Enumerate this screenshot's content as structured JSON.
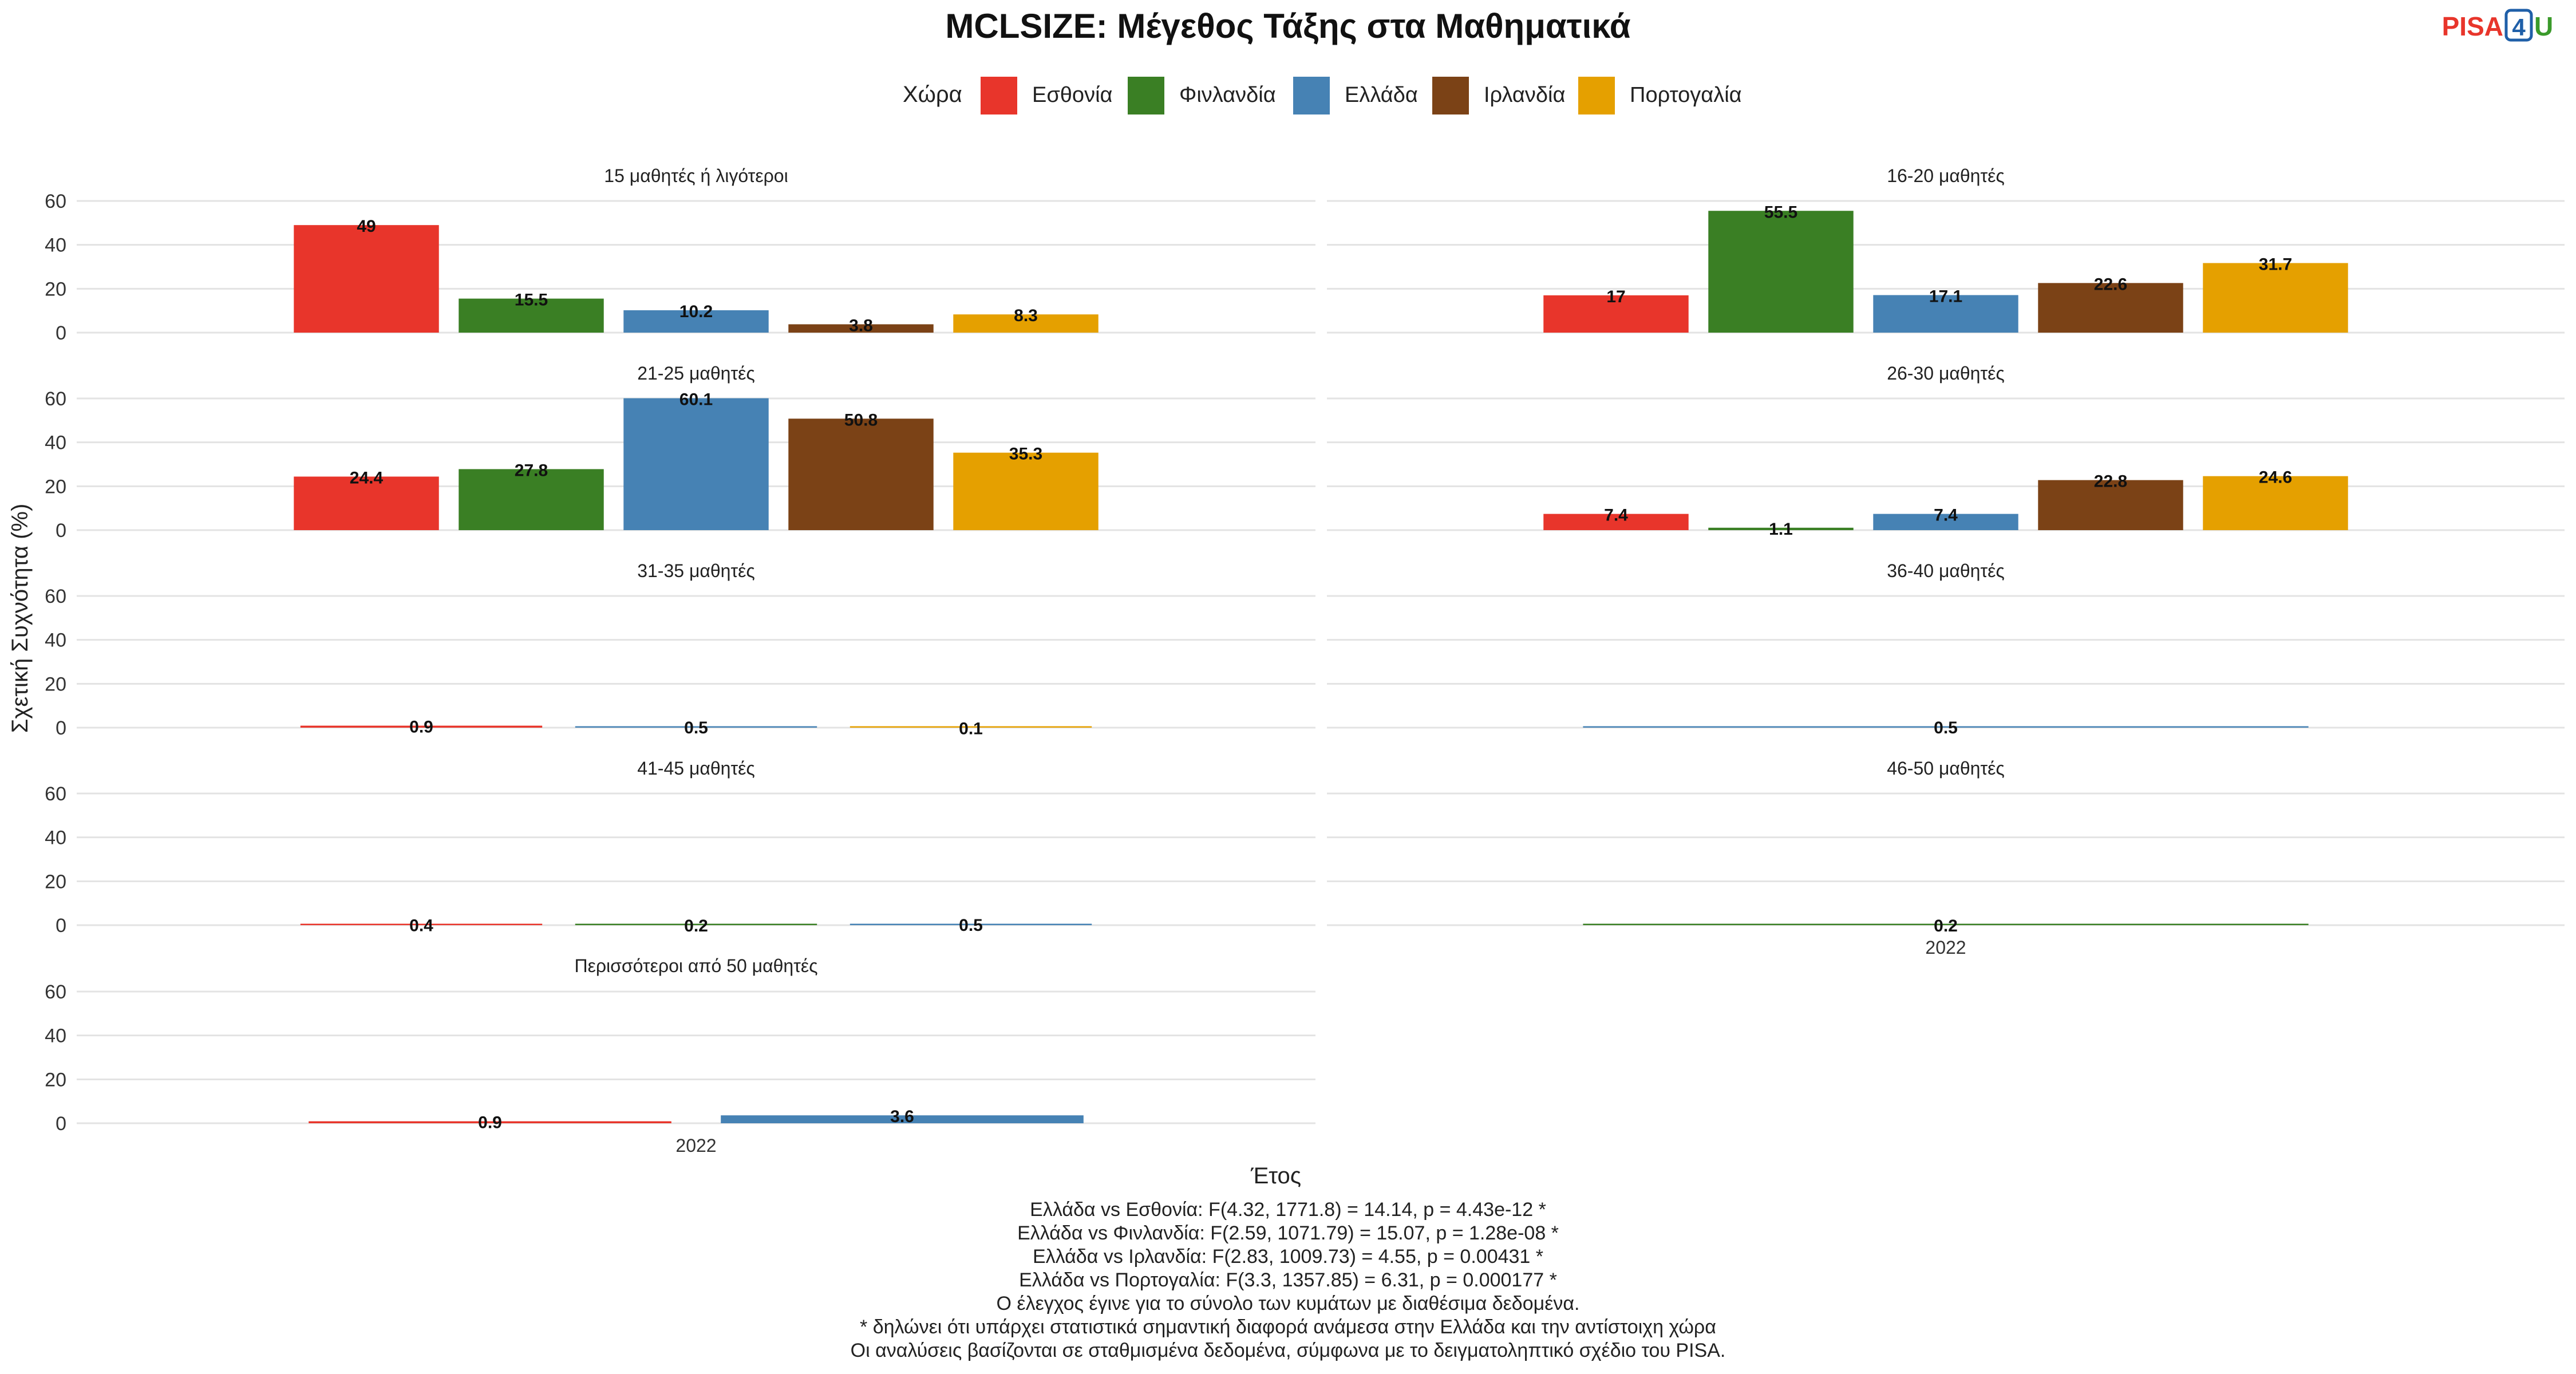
{
  "chart_data": {
    "type": "bar",
    "title": "MCLSIZE: Μέγεθος Τάξης στα Μαθηματικά",
    "xlabel": "Έτος",
    "ylabel": "Σχετική Συχνότητα (%)",
    "ylim": [
      0,
      60
    ],
    "yticks": [
      0,
      20,
      40,
      60
    ],
    "grid": true,
    "x_category": "2022",
    "legend": {
      "title": "Χώρα",
      "placement": "top-center",
      "entries": [
        {
          "name": "Εσθονία",
          "color": "#E8352B"
        },
        {
          "name": "Φινλανδία",
          "color": "#3A7F24"
        },
        {
          "name": "Ελλάδα",
          "color": "#4682B4"
        },
        {
          "name": "Ιρλανδία",
          "color": "#7B4216"
        },
        {
          "name": "Πορτογαλία",
          "color": "#E5A000"
        }
      ]
    },
    "facets": [
      {
        "label": "15 μαθητές ή λιγότεροι",
        "bars": [
          {
            "series": "Εσθονία",
            "value": 49
          },
          {
            "series": "Φινλανδία",
            "value": 15.5
          },
          {
            "series": "Ελλάδα",
            "value": 10.2
          },
          {
            "series": "Ιρλανδία",
            "value": 3.8
          },
          {
            "series": "Πορτογαλία",
            "value": 8.3
          }
        ]
      },
      {
        "label": "16-20 μαθητές",
        "bars": [
          {
            "series": "Εσθονία",
            "value": 17
          },
          {
            "series": "Φινλανδία",
            "value": 55.5
          },
          {
            "series": "Ελλάδα",
            "value": 17.1
          },
          {
            "series": "Ιρλανδία",
            "value": 22.6
          },
          {
            "series": "Πορτογαλία",
            "value": 31.7
          }
        ]
      },
      {
        "label": "21-25 μαθητές",
        "bars": [
          {
            "series": "Εσθονία",
            "value": 24.4
          },
          {
            "series": "Φινλανδία",
            "value": 27.8
          },
          {
            "series": "Ελλάδα",
            "value": 60.1
          },
          {
            "series": "Ιρλανδία",
            "value": 50.8
          },
          {
            "series": "Πορτογαλία",
            "value": 35.3
          }
        ]
      },
      {
        "label": "26-30 μαθητές",
        "bars": [
          {
            "series": "Εσθονία",
            "value": 7.4
          },
          {
            "series": "Φινλανδία",
            "value": 1.1
          },
          {
            "series": "Ελλάδα",
            "value": 7.4
          },
          {
            "series": "Ιρλανδία",
            "value": 22.8
          },
          {
            "series": "Πορτογαλία",
            "value": 24.6
          }
        ]
      },
      {
        "label": "31-35 μαθητές",
        "bars": [
          {
            "series": "Εσθονία",
            "value": 0.9
          },
          {
            "series": "Ελλάδα",
            "value": 0.5
          },
          {
            "series": "Πορτογαλία",
            "value": 0.1
          }
        ]
      },
      {
        "label": "36-40 μαθητές",
        "bars": [
          {
            "series": "Ελλάδα",
            "value": 0.5
          }
        ]
      },
      {
        "label": "41-45 μαθητές",
        "bars": [
          {
            "series": "Εσθονία",
            "value": 0.4
          },
          {
            "series": "Φινλανδία",
            "value": 0.2
          },
          {
            "series": "Ελλάδα",
            "value": 0.5
          }
        ]
      },
      {
        "label": "46-50 μαθητές",
        "bars": [
          {
            "series": "Φινλανδία",
            "value": 0.2
          }
        ]
      },
      {
        "label": "Περισσότεροι από 50 μαθητές",
        "bars": [
          {
            "series": "Εσθονία",
            "value": 0.9
          },
          {
            "series": "Ελλάδα",
            "value": 3.6
          }
        ]
      }
    ],
    "notes": [
      "Ελλάδα vs Εσθονία: F(4.32, 1771.8) = 14.14, p = 4.43e-12 *",
      "Ελλάδα vs Φινλανδία: F(2.59, 1071.79) = 15.07, p = 1.28e-08 *",
      "Ελλάδα vs Ιρλανδία: F(2.83, 1009.73) = 4.55, p = 0.00431 *",
      "Ελλάδα vs Πορτογαλία: F(3.3, 1357.85) = 6.31, p = 0.000177 *",
      "Ο έλεγχος έγινε για το σύνολο των κυμάτων με διαθέσιμα δεδομένα.",
      "* δηλώνει ότι υπάρχει στατιστικά σημαντική διαφορά ανάμεσα στην Ελλάδα και την αντίστοιχη χώρα",
      "Οι αναλύσεις βασίζονται σε σταθμισμένα δεδομένα, σύμφωνα με το δειγματοληπτικό σχέδιο του PISA."
    ]
  },
  "logo": {
    "parts": [
      {
        "text": "PISA",
        "color": "#E8352B"
      },
      {
        "text": "4",
        "color": "#1F5FA8"
      },
      {
        "text": "U",
        "color": "#3A9A2A"
      }
    ]
  }
}
